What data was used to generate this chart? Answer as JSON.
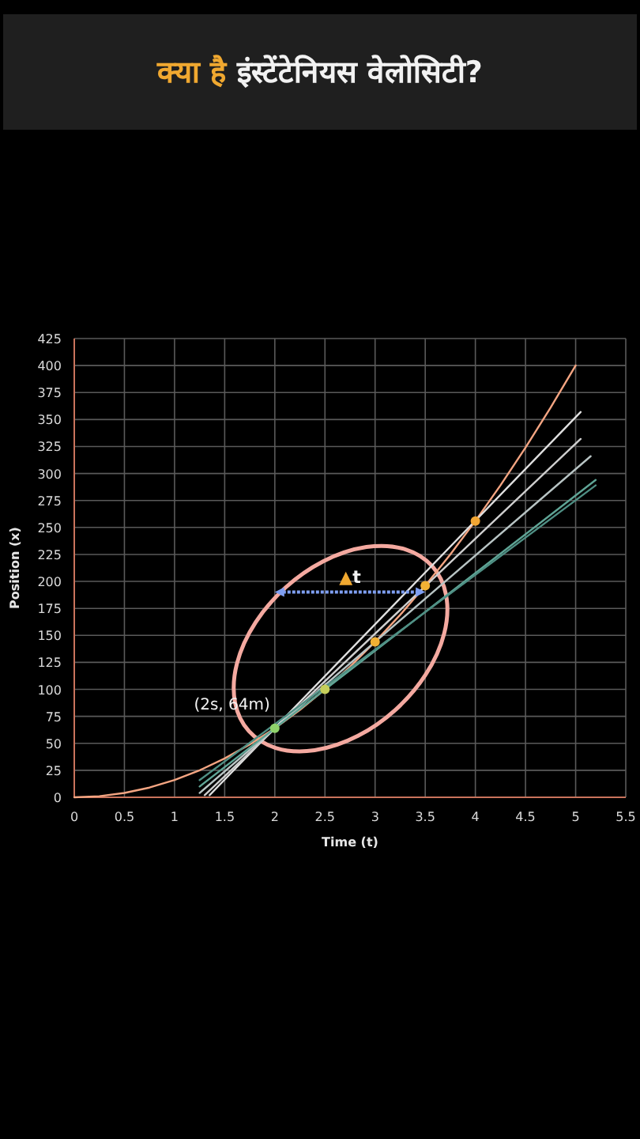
{
  "chart_data": {
    "type": "line",
    "title": "क्या है इंस्टेंटेनियस वेलोसिटी?",
    "xlabel": "Time (t)",
    "ylabel": "Position (x)",
    "xlim": [
      0,
      5.5
    ],
    "ylim": [
      0,
      425
    ],
    "xticks": [
      0,
      0.5,
      1,
      1.5,
      2,
      2.5,
      3,
      3.5,
      4,
      4.5,
      5,
      5.5
    ],
    "yticks": [
      0,
      25,
      50,
      75,
      100,
      125,
      150,
      175,
      200,
      225,
      250,
      275,
      300,
      325,
      350,
      375,
      400,
      425
    ],
    "grid": true,
    "series": [
      {
        "color": "#f4a582",
        "x": [
          0,
          0.25,
          0.5,
          0.75,
          1,
          1.25,
          1.5,
          1.75,
          2,
          2.25,
          2.5,
          2.75,
          3,
          3.25,
          3.5,
          3.75,
          4,
          4.25,
          4.5,
          4.75,
          5
        ],
        "values": [
          0,
          1,
          4,
          9,
          16,
          25,
          36,
          49,
          64,
          81,
          100,
          121,
          144,
          169,
          196,
          225,
          256,
          289,
          324,
          361,
          400
        ]
      },
      {
        "type": "line",
        "color": "#e0e0e0",
        "x": [
          1.35,
          5.05
        ],
        "values": [
          2,
          357
        ]
      },
      {
        "type": "line",
        "color": "#cfcfcf",
        "x": [
          1.3,
          5.05
        ],
        "values": [
          2,
          332
        ]
      },
      {
        "type": "line",
        "color": "#b8c4c4",
        "x": [
          1.25,
          5.15
        ],
        "values": [
          4,
          316
        ]
      },
      {
        "type": "line",
        "color": "#5fa596",
        "x": [
          1.25,
          5.2
        ],
        "values": [
          10,
          294
        ]
      },
      {
        "type": "line",
        "color": "#4f8f84",
        "x": [
          1.25,
          5.2
        ],
        "values": [
          16,
          289
        ]
      },
      {
        "type": "scatter",
        "x": [
          2,
          2.5,
          3,
          3.5,
          4
        ],
        "values": [
          64,
          100,
          144,
          196,
          256
        ],
        "colors": [
          "#8fd36b",
          "#c6cf5a",
          "#f2b134",
          "#f2b134",
          "#f2a634"
        ]
      }
    ],
    "annotations": [
      {
        "text": "(2s, 64m)",
        "x": 2,
        "y": 64
      },
      "▲t"
    ]
  }
}
